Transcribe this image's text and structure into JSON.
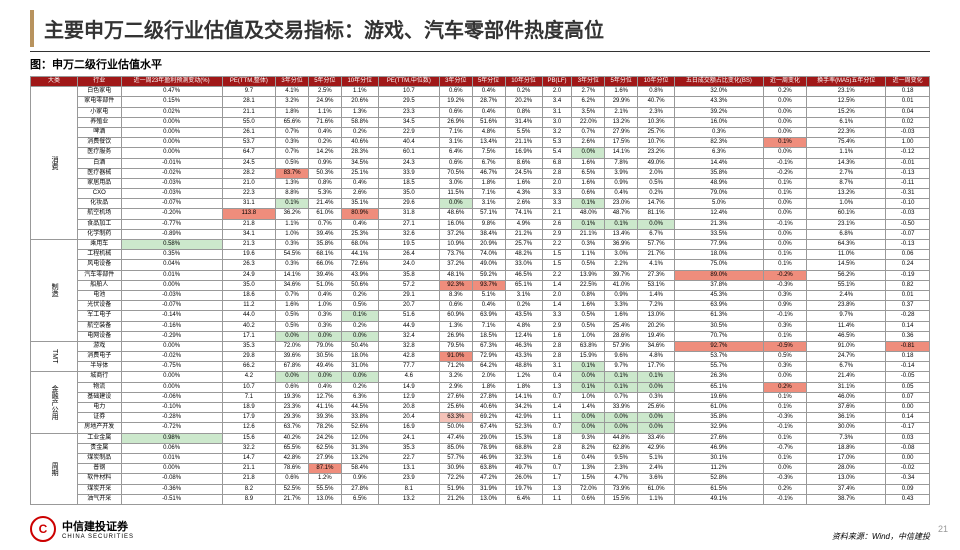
{
  "title": "主要申万二级行业估值及交易指标：游戏、汽车零部件热度高位",
  "subtitle": "图：申万二级行业估值水平",
  "source": "资料来源：Wind，中信建投",
  "logo_cn": "中信建投证券",
  "logo_en": "CHINA SECURITIES",
  "page_num": "21",
  "headers": [
    "大类",
    "行业",
    "近一周23年盈利预测变动(%)",
    "PE(TTM,整体)",
    "3年分位",
    "5年分位",
    "10年分位",
    "PE(TTM,中位数)",
    "3年分位",
    "5年分位",
    "10年分位",
    "PB(LF)",
    "3年分位",
    "5年分位",
    "10年分位",
    "五日成交额占比变化(BS)",
    "近一周变化",
    "换手率(MA5)五年分位",
    "近一周变化"
  ],
  "categories": [
    {
      "name": "消费",
      "rows": [
        [
          "白色家电",
          "0.47%",
          "9.7",
          "4.1%",
          "2.5%",
          "1.1%",
          "10.7",
          "0.6%",
          "0.4%",
          "0.2%",
          "2.0",
          "2.7%",
          "1.6%",
          "0.8%",
          "32.0%",
          "0.2%",
          "23.1%",
          "0.18"
        ],
        [
          "家电零部件",
          "0.15%",
          "28.1",
          "3.2%",
          "24.9%",
          "20.6%",
          "29.5",
          "19.2%",
          "28.7%",
          "20.2%",
          "3.4",
          "6.2%",
          "29.9%",
          "40.7%",
          "43.3%",
          "0.0%",
          "12.5%",
          "0.01"
        ],
        [
          "小家电",
          "0.02%",
          "21.1",
          "1.8%",
          "1.1%",
          "1.3%",
          "23.3",
          "0.6%",
          "0.4%",
          "0.8%",
          "3.1",
          "3.5%",
          "2.1%",
          "2.3%",
          "39.2%",
          "0.0%",
          "15.2%",
          "0.04"
        ],
        [
          "养殖业",
          "0.00%",
          "55.0",
          "65.6%",
          "71.6%",
          "58.8%",
          "34.5",
          "26.9%",
          "51.6%",
          "31.4%",
          "3.0",
          "22.0%",
          "13.2%",
          "10.3%",
          "16.0%",
          "0.0%",
          "6.1%",
          "0.02"
        ],
        [
          "啤酒",
          "0.00%",
          "26.1",
          "0.7%",
          "0.4%",
          "0.2%",
          "22.9",
          "7.1%",
          "4.8%",
          "5.5%",
          "3.2",
          "0.7%",
          "27.9%",
          "25.7%",
          "0.3%",
          "0.0%",
          "22.3%",
          "-0.03"
        ],
        [
          "消费餐饮",
          "0.00%",
          "53.7",
          "0.3%",
          "0.2%",
          "40.6%",
          "40.4",
          "3.1%",
          "13.4%",
          "21.1%",
          "5.3",
          "2.6%",
          "17.5%",
          "10.7%",
          "82.3%",
          "0.1%",
          "75.4%",
          "1.00"
        ],
        [
          "医疗服务",
          "0.00%",
          "64.7",
          "0.7%",
          "14.2%",
          "28.3%",
          "60.1",
          "6.4%",
          "7.5%",
          "16.9%",
          "5.4",
          "0.0%",
          "14.1%",
          "23.2%",
          "6.3%",
          "0.0%",
          "1.1%",
          "-0.12"
        ],
        [
          "白酒",
          "-0.01%",
          "24.5",
          "0.5%",
          "0.9%",
          "34.5%",
          "24.3",
          "0.6%",
          "6.7%",
          "8.6%",
          "6.8",
          "1.6%",
          "7.8%",
          "49.0%",
          "14.4%",
          "-0.1%",
          "14.3%",
          "-0.01"
        ],
        [
          "医疗器械",
          "-0.02%",
          "28.2",
          "83.7%",
          "50.3%",
          "25.1%",
          "33.9",
          "70.5%",
          "46.7%",
          "24.5%",
          "2.8",
          "6.5%",
          "3.9%",
          "2.0%",
          "35.8%",
          "-0.2%",
          "2.7%",
          "-0.13"
        ],
        [
          "家居用品",
          "-0.03%",
          "21.0",
          "1.3%",
          "0.8%",
          "0.4%",
          "18.5",
          "3.0%",
          "1.8%",
          "1.6%",
          "2.0",
          "1.6%",
          "0.9%",
          "0.5%",
          "48.9%",
          "0.1%",
          "8.7%",
          "-0.11"
        ],
        [
          "CXO",
          "-0.03%",
          "22.3",
          "8.8%",
          "5.3%",
          "2.6%",
          "35.0",
          "11.5%",
          "7.1%",
          "4.3%",
          "3.3",
          "0.6%",
          "0.4%",
          "0.2%",
          "79.0%",
          "0.1%",
          "13.2%",
          "-0.31"
        ],
        [
          "化妆品",
          "-0.07%",
          "31.1",
          "0.1%",
          "21.4%",
          "35.1%",
          "29.6",
          "0.0%",
          "3.1%",
          "2.6%",
          "3.3",
          "0.1%",
          "23.0%",
          "14.7%",
          "5.0%",
          "0.0%",
          "1.0%",
          "-0.10"
        ],
        [
          "航空机场",
          "-0.20%",
          "113.8",
          "36.2%",
          "61.0%",
          "80.9%",
          "31.8",
          "48.6%",
          "57.1%",
          "74.1%",
          "2.1",
          "48.0%",
          "48.7%",
          "81.1%",
          "12.4%",
          "0.0%",
          "60.1%",
          "-0.03"
        ],
        [
          "食品加工",
          "-0.77%",
          "21.8",
          "1.1%",
          "0.7%",
          "0.4%",
          "27.1",
          "16.0%",
          "9.8%",
          "4.9%",
          "2.6",
          "0.1%",
          "0.1%",
          "0.0%",
          "21.3%",
          "-0.1%",
          "23.1%",
          "-0.50"
        ],
        [
          "化学制药",
          "-0.89%",
          "34.1",
          "1.0%",
          "39.4%",
          "25.3%",
          "32.6",
          "37.2%",
          "38.4%",
          "21.2%",
          "2.9",
          "21.1%",
          "13.4%",
          "6.7%",
          "33.5%",
          "0.0%",
          "6.8%",
          "-0.07"
        ]
      ]
    },
    {
      "name": "制造",
      "rows": [
        [
          "乘用车",
          "0.58%",
          "21.3",
          "0.3%",
          "35.8%",
          "68.0%",
          "19.5",
          "10.9%",
          "20.9%",
          "25.7%",
          "2.2",
          "0.3%",
          "36.9%",
          "57.7%",
          "77.9%",
          "0.0%",
          "64.3%",
          "-0.13"
        ],
        [
          "工程机械",
          "0.35%",
          "19.6",
          "54.5%",
          "68.1%",
          "44.1%",
          "26.4",
          "73.7%",
          "74.0%",
          "48.2%",
          "1.5",
          "1.1%",
          "3.0%",
          "21.7%",
          "18.0%",
          "0.1%",
          "11.0%",
          "0.06"
        ],
        [
          "风电设备",
          "0.04%",
          "26.3",
          "0.3%",
          "66.0%",
          "72.6%",
          "24.0",
          "37.2%",
          "49.0%",
          "33.0%",
          "1.5",
          "0.5%",
          "2.2%",
          "4.1%",
          "75.0%",
          "0.1%",
          "14.5%",
          "0.24"
        ],
        [
          "汽车零部件",
          "0.01%",
          "24.9",
          "14.1%",
          "39.4%",
          "43.9%",
          "35.8",
          "48.1%",
          "59.2%",
          "46.5%",
          "2.2",
          "13.9%",
          "39.7%",
          "27.3%",
          "89.0%",
          "-0.2%",
          "56.2%",
          "-0.19"
        ],
        [
          "船舶人",
          "0.00%",
          "35.0",
          "34.6%",
          "51.0%",
          "50.6%",
          "57.2",
          "92.3%",
          "93.7%",
          "65.1%",
          "1.4",
          "22.5%",
          "41.0%",
          "53.1%",
          "37.8%",
          "-0.3%",
          "55.1%",
          "0.82"
        ],
        [
          "电池",
          "-0.03%",
          "18.6",
          "0.7%",
          "0.4%",
          "0.2%",
          "29.1",
          "8.3%",
          "5.1%",
          "3.1%",
          "2.0",
          "0.8%",
          "0.9%",
          "1.4%",
          "45.3%",
          "0.3%",
          "2.4%",
          "0.01"
        ],
        [
          "光伏设备",
          "-0.07%",
          "11.2",
          "1.6%",
          "1.0%",
          "0.5%",
          "20.7",
          "0.6%",
          "0.4%",
          "0.2%",
          "1.4",
          "1.6%",
          "3.3%",
          "7.2%",
          "63.9%",
          "0.9%",
          "23.8%",
          "0.37"
        ],
        [
          "军工电子",
          "-0.14%",
          "44.0",
          "0.5%",
          "0.3%",
          "0.1%",
          "51.6",
          "60.9%",
          "63.9%",
          "43.5%",
          "3.3",
          "0.5%",
          "1.6%",
          "13.0%",
          "61.3%",
          "-0.1%",
          "9.7%",
          "-0.28"
        ],
        [
          "航空装备",
          "-0.16%",
          "40.2",
          "0.5%",
          "0.3%",
          "0.2%",
          "44.9",
          "1.3%",
          "7.1%",
          "4.8%",
          "2.9",
          "0.5%",
          "25.4%",
          "20.2%",
          "30.5%",
          "0.3%",
          "11.4%",
          "0.14"
        ],
        [
          "电网设备",
          "-0.29%",
          "17.1",
          "0.0%",
          "0.0%",
          "0.0%",
          "32.4",
          "26.9%",
          "18.5%",
          "12.4%",
          "1.6",
          "1.0%",
          "28.6%",
          "19.4%",
          "70.7%",
          "0.1%",
          "46.5%",
          "0.36"
        ]
      ]
    },
    {
      "name": "TMT",
      "rows": [
        [
          "游戏",
          "0.00%",
          "35.3",
          "72.0%",
          "79.0%",
          "50.4%",
          "32.8",
          "79.5%",
          "67.3%",
          "46.3%",
          "2.8",
          "63.8%",
          "57.9%",
          "34.6%",
          "92.7%",
          "-0.5%",
          "91.0%",
          "-0.81"
        ],
        [
          "消费电子",
          "-0.02%",
          "29.8",
          "39.6%",
          "30.5%",
          "18.0%",
          "42.8",
          "91.0%",
          "72.9%",
          "43.3%",
          "2.8",
          "15.9%",
          "9.6%",
          "4.8%",
          "53.7%",
          "0.5%",
          "24.7%",
          "0.18"
        ],
        [
          "半导体",
          "-0.75%",
          "66.2",
          "67.8%",
          "49.4%",
          "31.0%",
          "77.7",
          "71.2%",
          "64.2%",
          "48.8%",
          "3.1",
          "0.1%",
          "9.7%",
          "17.7%",
          "55.7%",
          "0.3%",
          "6.7%",
          "-0.14"
        ]
      ]
    },
    {
      "name": "金融产公用",
      "rows": [
        [
          "城商行",
          "0.00%",
          "4.2",
          "0.0%",
          "0.0%",
          "0.0%",
          "4.6",
          "3.2%",
          "2.0%",
          "1.2%",
          "0.4",
          "0.0%",
          "0.1%",
          "0.1%",
          "26.3%",
          "0.0%",
          "21.4%",
          "-0.05"
        ],
        [
          "物流",
          "0.00%",
          "10.7",
          "0.6%",
          "0.4%",
          "0.2%",
          "14.9",
          "2.9%",
          "1.8%",
          "1.8%",
          "1.3",
          "0.1%",
          "0.1%",
          "0.0%",
          "65.1%",
          "0.2%",
          "31.1%",
          "0.05"
        ],
        [
          "基础建设",
          "-0.06%",
          "7.1",
          "19.3%",
          "12.7%",
          "6.3%",
          "12.9",
          "27.6%",
          "27.8%",
          "14.1%",
          "0.7",
          "1.0%",
          "0.7%",
          "0.3%",
          "19.6%",
          "0.1%",
          "46.0%",
          "0.07"
        ],
        [
          "电力",
          "-0.10%",
          "18.9",
          "23.3%",
          "41.1%",
          "44.5%",
          "20.8",
          "25.6%",
          "40.6%",
          "34.2%",
          "1.4",
          "1.4%",
          "33.9%",
          "25.6%",
          "61.0%",
          "0.1%",
          "37.6%",
          "0.00"
        ],
        [
          "证券",
          "-0.28%",
          "17.9",
          "29.3%",
          "39.3%",
          "33.8%",
          "20.4",
          "63.3%",
          "69.2%",
          "42.9%",
          "1.1",
          "0.0%",
          "0.0%",
          "0.0%",
          "35.8%",
          "-0.3%",
          "36.1%",
          "0.14"
        ],
        [
          "房地产开发",
          "-0.72%",
          "12.6",
          "63.7%",
          "78.2%",
          "52.6%",
          "16.9",
          "50.0%",
          "67.4%",
          "52.3%",
          "0.7",
          "0.0%",
          "0.0%",
          "0.0%",
          "32.9%",
          "-0.1%",
          "30.0%",
          "-0.17"
        ]
      ]
    },
    {
      "name": "周期",
      "rows": [
        [
          "工业金属",
          "0.98%",
          "15.6",
          "40.2%",
          "24.2%",
          "12.0%",
          "24.1",
          "47.4%",
          "29.0%",
          "15.3%",
          "1.8",
          "9.3%",
          "44.8%",
          "33.4%",
          "27.6%",
          "0.1%",
          "7.3%",
          "0.03"
        ],
        [
          "贵金属",
          "0.06%",
          "32.2",
          "65.5%",
          "62.5%",
          "31.3%",
          "35.3",
          "85.0%",
          "78.9%",
          "68.8%",
          "2.8",
          "8.2%",
          "62.8%",
          "42.9%",
          "46.9%",
          "-0.7%",
          "18.8%",
          "-0.08"
        ],
        [
          "煤炭制品",
          "0.01%",
          "14.7",
          "42.8%",
          "27.9%",
          "13.2%",
          "22.7",
          "57.7%",
          "46.9%",
          "32.3%",
          "1.6",
          "0.4%",
          "9.5%",
          "5.1%",
          "30.1%",
          "0.1%",
          "17.0%",
          "0.00"
        ],
        [
          "普钢",
          "0.00%",
          "21.1",
          "78.6%",
          "87.1%",
          "58.4%",
          "13.1",
          "30.9%",
          "63.8%",
          "49.7%",
          "0.7",
          "1.3%",
          "2.3%",
          "2.4%",
          "11.2%",
          "0.0%",
          "28.0%",
          "-0.02"
        ],
        [
          "软件材料",
          "-0.08%",
          "21.8",
          "0.6%",
          "1.2%",
          "0.9%",
          "23.9",
          "72.2%",
          "47.2%",
          "26.0%",
          "1.7",
          "1.5%",
          "4.7%",
          "3.6%",
          "52.8%",
          "-0.3%",
          "13.0%",
          "-0.34"
        ],
        [
          "煤炭开采",
          "-0.36%",
          "8.2",
          "52.5%",
          "55.5%",
          "27.8%",
          "8.1",
          "51.9%",
          "31.9%",
          "19.7%",
          "1.3",
          "72.0%",
          "73.9%",
          "61.0%",
          "61.5%",
          "0.2%",
          "37.4%",
          "0.09"
        ],
        [
          "油气开采",
          "-0.51%",
          "8.9",
          "21.7%",
          "13.0%",
          "6.5%",
          "13.2",
          "21.2%",
          "13.0%",
          "6.4%",
          "1.1",
          "0.6%",
          "15.5%",
          "1.1%",
          "49.1%",
          "-0.1%",
          "38.7%",
          "0.43"
        ]
      ]
    }
  ]
}
